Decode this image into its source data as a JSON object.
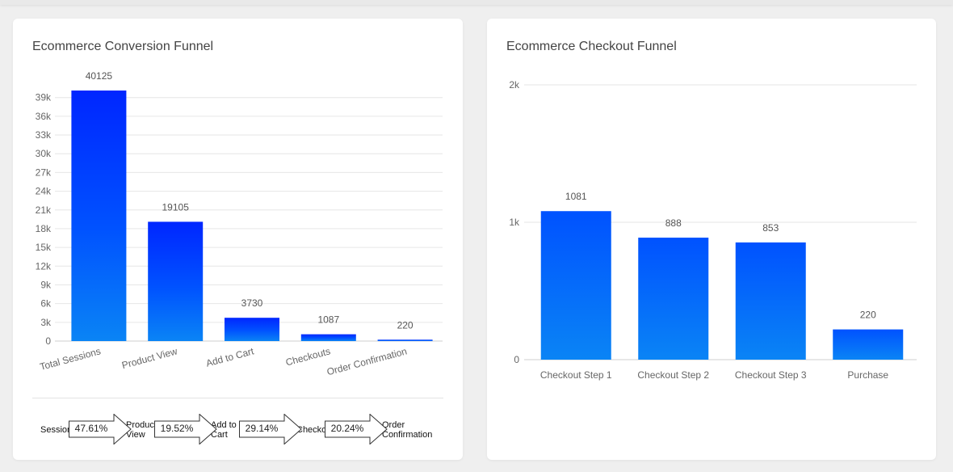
{
  "colors": {
    "bar_top": "#0026ff",
    "bar_mid": "#0052ff",
    "bar_bottom": "#0a84f5",
    "grid": "#e6e6e6",
    "axis_text": "#666666",
    "label_text": "#555555"
  },
  "left_card": {
    "title": "Ecommerce Conversion Funnel",
    "funnel_stages": [
      "Sessions",
      "Product\nView",
      "Add to\nCart",
      "Checkouts",
      "Order\nConfirmation"
    ],
    "funnel_rates": [
      "47.61%",
      "19.52%",
      "29.14%",
      "20.24%"
    ]
  },
  "right_card": {
    "title": "Ecommerce Checkout Funnel"
  },
  "chart_data": [
    {
      "type": "bar",
      "title": "Ecommerce Conversion Funnel",
      "categories": [
        "Total Sessions",
        "Product View",
        "Add to Cart",
        "Checkouts",
        "Order Confirmation"
      ],
      "values": [
        40125,
        19105,
        3730,
        1087,
        220
      ],
      "data_labels": [
        "40125",
        "19105",
        "3730",
        "1087",
        "220"
      ],
      "yticks": [
        0,
        3000,
        6000,
        9000,
        12000,
        15000,
        18000,
        21000,
        24000,
        27000,
        30000,
        33000,
        36000,
        39000
      ],
      "ytick_labels": [
        "0",
        "3k",
        "6k",
        "9k",
        "12k",
        "15k",
        "18k",
        "21k",
        "24k",
        "27k",
        "30k",
        "33k",
        "36k",
        "39k"
      ],
      "ylim": [
        0,
        40125
      ],
      "grid": true,
      "legend": "none",
      "xlabel_rotation": "slanted"
    },
    {
      "type": "bar",
      "title": "Ecommerce Checkout Funnel",
      "categories": [
        "Checkout Step 1",
        "Checkout Step 2",
        "Checkout Step 3",
        "Purchase"
      ],
      "values": [
        1081,
        888,
        853,
        220
      ],
      "data_labels": [
        "1081",
        "888",
        "853",
        "220"
      ],
      "yticks": [
        0,
        1000,
        2000
      ],
      "ytick_labels": [
        "0",
        "1k",
        "2k"
      ],
      "ylim": [
        0,
        2000
      ],
      "grid": true,
      "legend": "none"
    }
  ]
}
